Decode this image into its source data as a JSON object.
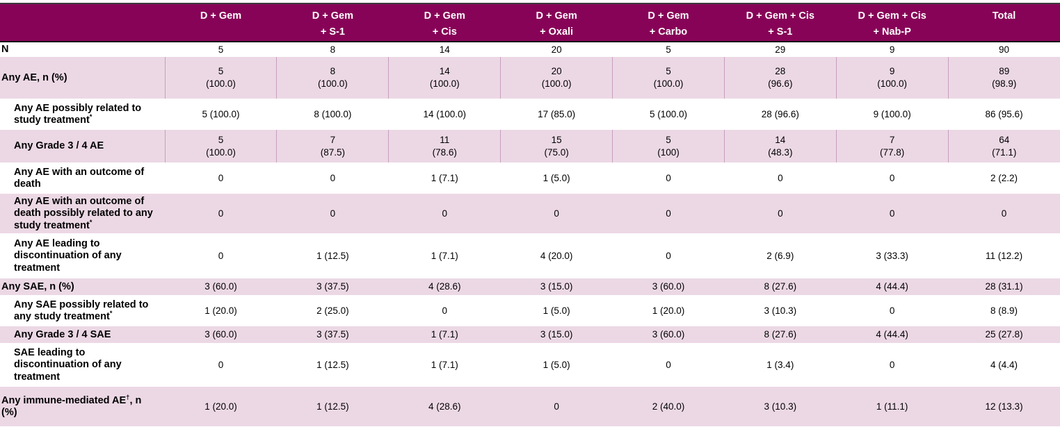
{
  "colors": {
    "header_bg": "#870357",
    "header_text": "#ffffff",
    "shaded_row_bg": "#ecd8e5",
    "cell_border": "#c89ebd",
    "top_rule": "#3c3c3c",
    "header_rule": "#141414",
    "body_text": "#000000"
  },
  "table": {
    "corner_label": "",
    "columns": [
      {
        "line1": "D + Gem",
        "line2": ""
      },
      {
        "line1": "D + Gem",
        "line2": "+ S-1"
      },
      {
        "line1": "D + Gem",
        "line2": "+ Cis"
      },
      {
        "line1": "D + Gem",
        "line2": "+ Oxali"
      },
      {
        "line1": "D + Gem",
        "line2": "+ Carbo"
      },
      {
        "line1": "D + Gem + Cis",
        "line2": "+ S-1"
      },
      {
        "line1": "D + Gem + Cis",
        "line2": "+ Nab-P"
      },
      {
        "line1": "Total",
        "line2": ""
      }
    ],
    "rows": [
      {
        "label": "N",
        "sup": "",
        "tail": "",
        "indent": false,
        "shaded": false,
        "bordered": false,
        "values": [
          "5",
          "8",
          "14",
          "20",
          "5",
          "29",
          "9",
          "90"
        ]
      },
      {
        "label": "Any AE, n (%)",
        "sup": "",
        "tail": "",
        "indent": false,
        "shaded": true,
        "bordered": true,
        "values": [
          [
            "5",
            "(100.0)"
          ],
          [
            "8",
            "(100.0)"
          ],
          [
            "14",
            "(100.0)"
          ],
          [
            "20",
            "(100.0)"
          ],
          [
            "5",
            "(100.0)"
          ],
          [
            "28",
            "(96.6)"
          ],
          [
            "9",
            "(100.0)"
          ],
          [
            "89",
            "(98.9)"
          ]
        ]
      },
      {
        "label": "Any AE possibly related to study treatment",
        "sup": "*",
        "tail": "",
        "indent": true,
        "shaded": false,
        "bordered": false,
        "values": [
          "5 (100.0)",
          "8 (100.0)",
          "14 (100.0)",
          "17 (85.0)",
          "5 (100.0)",
          "28 (96.6)",
          "9 (100.0)",
          "86 (95.6)"
        ]
      },
      {
        "label": "Any Grade 3 / 4  AE",
        "sup": "",
        "tail": "",
        "indent": true,
        "shaded": true,
        "bordered": true,
        "values": [
          [
            "5",
            "(100.0)"
          ],
          [
            "7",
            "(87.5)"
          ],
          [
            "11",
            "(78.6)"
          ],
          [
            "15",
            "(75.0)"
          ],
          [
            "5",
            "(100)"
          ],
          [
            "14",
            "(48.3)"
          ],
          [
            "7",
            "(77.8)"
          ],
          [
            "64",
            "(71.1)"
          ]
        ]
      },
      {
        "label": "Any AE with an outcome of death",
        "sup": "",
        "tail": "",
        "indent": true,
        "shaded": false,
        "bordered": false,
        "values": [
          "0",
          "0",
          "1 (7.1)",
          "1 (5.0)",
          "0",
          "0",
          "0",
          "2 (2.2)"
        ]
      },
      {
        "label": "Any AE with an outcome of death possibly related to any study treatment",
        "sup": "*",
        "tail": "",
        "indent": true,
        "shaded": true,
        "bordered": false,
        "values": [
          "0",
          "0",
          "0",
          "0",
          "0",
          "0",
          "0",
          "0"
        ]
      },
      {
        "label": "Any AE leading to discontinuation of any treatment",
        "sup": "",
        "tail": "",
        "indent": true,
        "shaded": false,
        "bordered": false,
        "values": [
          "0",
          "1 (12.5)",
          "1 (7.1)",
          "4 (20.0)",
          "0",
          "2 (6.9)",
          "3 (33.3)",
          "11 (12.2)"
        ]
      },
      {
        "label": "Any SAE, n (%)",
        "sup": "",
        "tail": "",
        "indent": false,
        "shaded": true,
        "bordered": false,
        "values": [
          "3 (60.0)",
          "3 (37.5)",
          "4 (28.6)",
          "3 (15.0)",
          "3 (60.0)",
          "8 (27.6)",
          "4 (44.4)",
          "28 (31.1)"
        ]
      },
      {
        "label": "Any SAE possibly related to any study treatment",
        "sup": "*",
        "tail": "",
        "indent": true,
        "shaded": false,
        "bordered": false,
        "values": [
          "1 (20.0)",
          "2 (25.0)",
          "0",
          "1 (5.0)",
          "1 (20.0)",
          "3 (10.3)",
          "0",
          "8 (8.9)"
        ]
      },
      {
        "label": "Any Grade 3 / 4 SAE",
        "sup": "",
        "tail": "",
        "indent": true,
        "shaded": true,
        "bordered": false,
        "values": [
          "3 (60.0)",
          "3 (37.5)",
          "1 (7.1)",
          "3 (15.0)",
          "3 (60.0)",
          "8 (27.6)",
          "4 (44.4)",
          "25 (27.8)"
        ]
      },
      {
        "label": "SAE leading to discontinuation of any treatment",
        "sup": "",
        "tail": "",
        "indent": true,
        "shaded": false,
        "bordered": false,
        "values": [
          "0",
          "1 (12.5)",
          "1 (7.1)",
          "1 (5.0)",
          "0",
          "1 (3.4)",
          "0",
          "4 (4.4)"
        ]
      },
      {
        "label": "Any immune-mediated AE",
        "sup": "†",
        "tail": ", n (%)",
        "indent": false,
        "shaded": true,
        "bordered": false,
        "values": [
          "1 (20.0)",
          "1 (12.5)",
          "4 (28.6)",
          "0",
          "2 (40.0)",
          "3 (10.3)",
          "1 (11.1)",
          "12 (13.3)"
        ]
      }
    ]
  }
}
